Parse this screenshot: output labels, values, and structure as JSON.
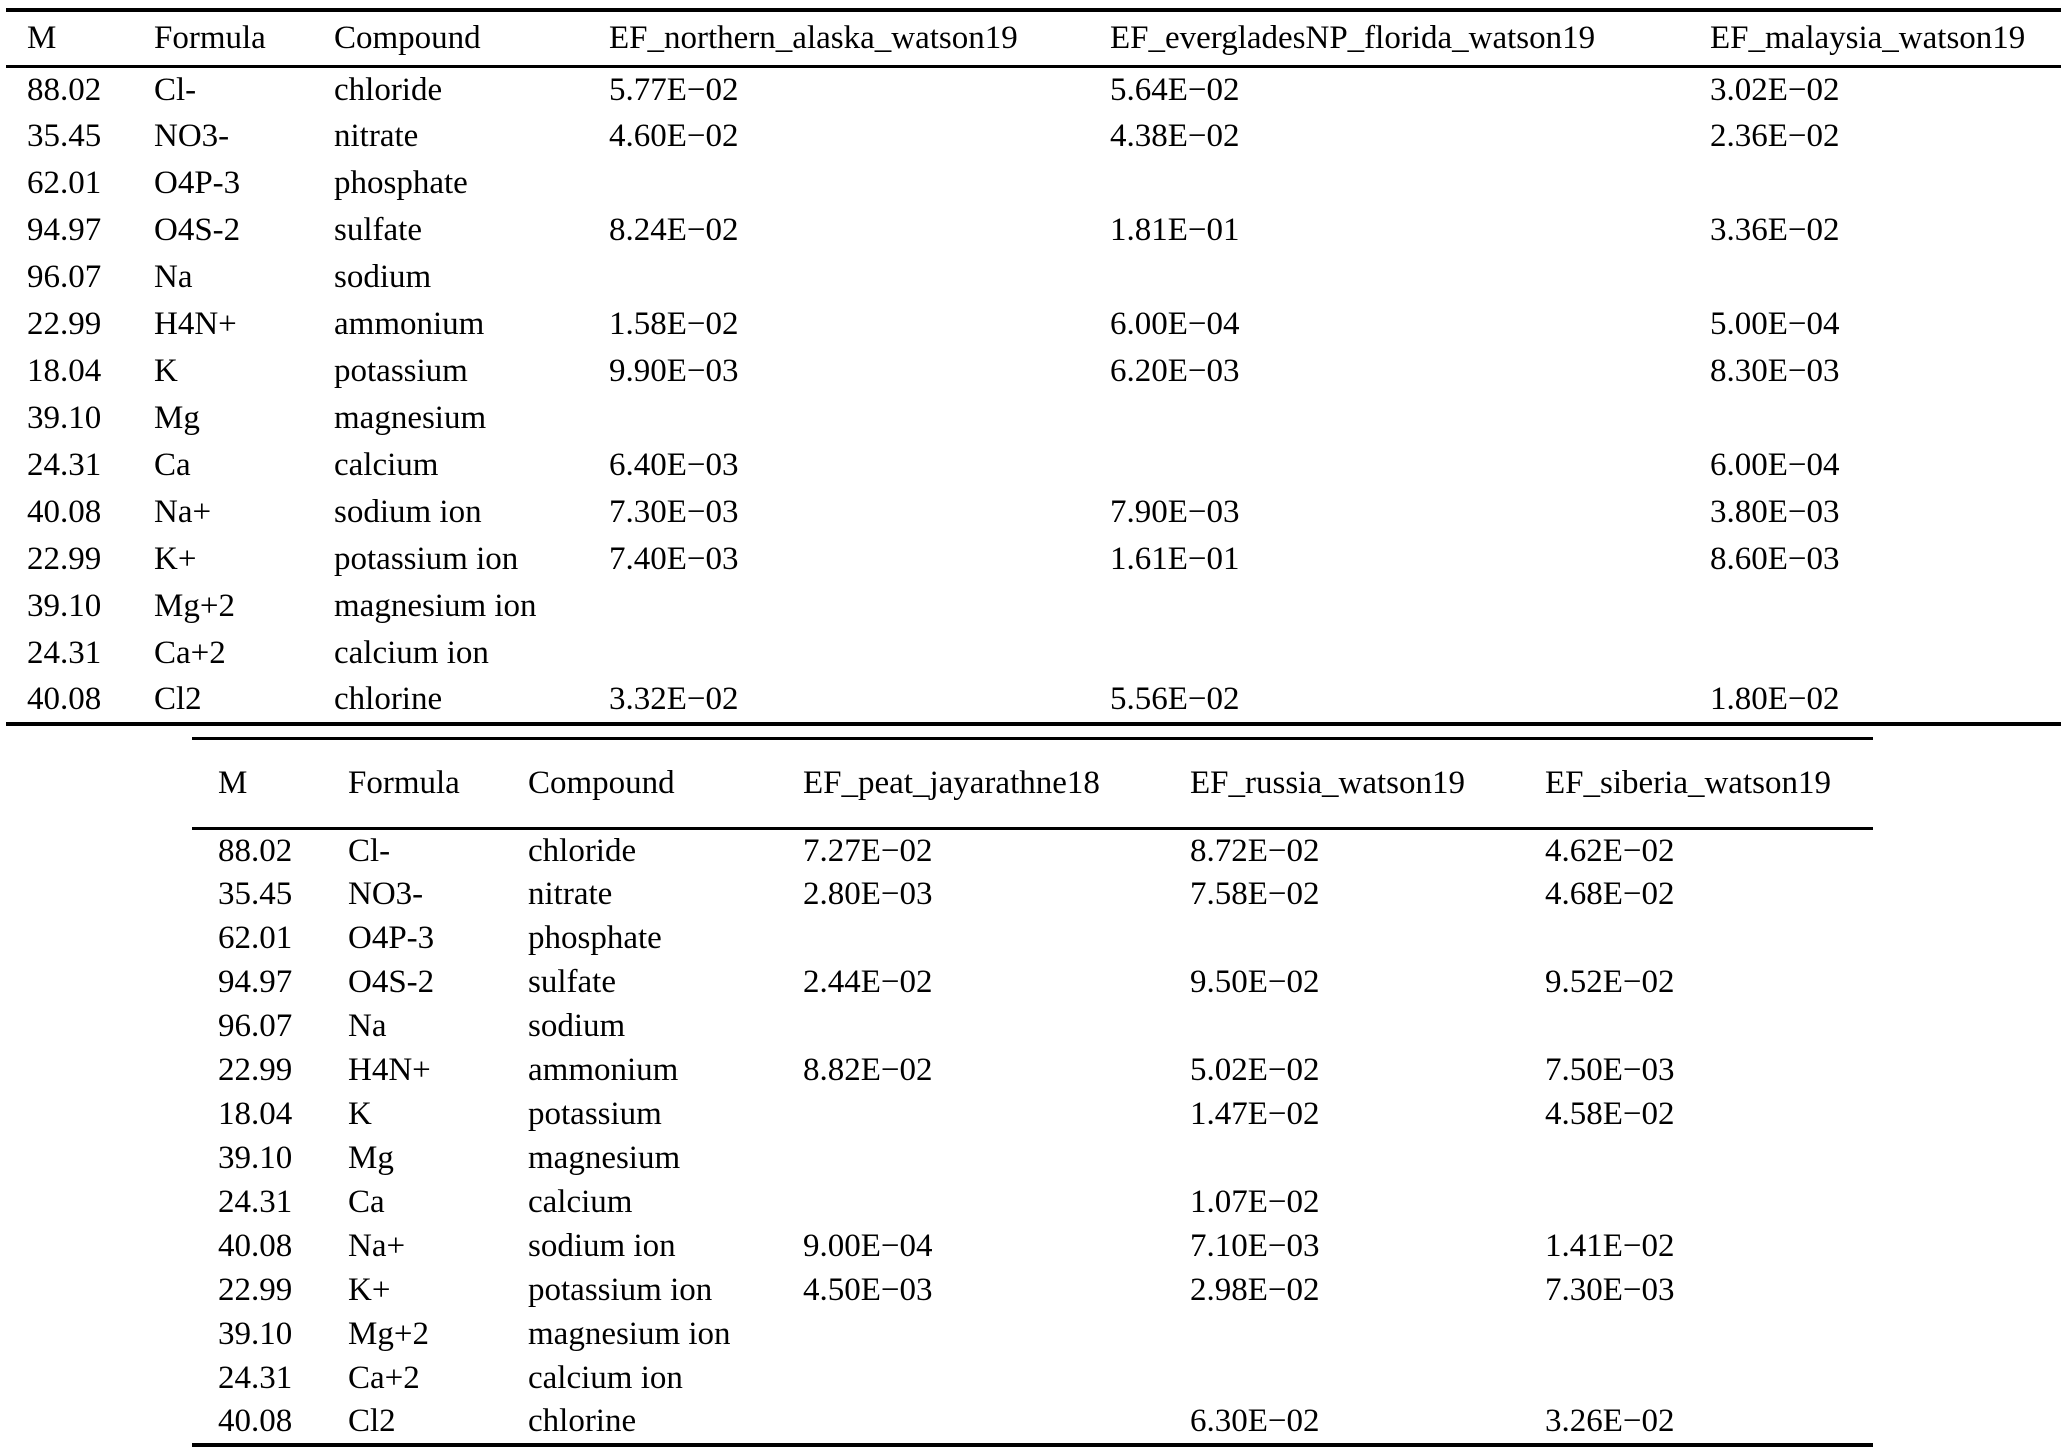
{
  "page": {
    "background_color": "#ffffff",
    "text_color": "#000000",
    "rule_color": "#000000"
  },
  "tables": [
    {
      "name": "emission-factors-table-top",
      "columns": [
        "M",
        "Formula",
        "Compound",
        "EF_northern_alaska_watson19",
        "EF_evergladesNP_florida_watson19",
        "EF_malaysia_watson19"
      ],
      "rows": [
        [
          "88.02",
          "Cl-",
          "chloride",
          "5.77E−02",
          "5.64E−02",
          "3.02E−02"
        ],
        [
          "35.45",
          "NO3-",
          "nitrate",
          "4.60E−02",
          "4.38E−02",
          "2.36E−02"
        ],
        [
          "62.01",
          "O4P-3",
          "phosphate",
          "",
          "",
          ""
        ],
        [
          "94.97",
          "O4S-2",
          "sulfate",
          "8.24E−02",
          "1.81E−01",
          "3.36E−02"
        ],
        [
          "96.07",
          "Na",
          "sodium",
          "",
          "",
          ""
        ],
        [
          "22.99",
          "H4N+",
          "ammonium",
          "1.58E−02",
          "6.00E−04",
          "5.00E−04"
        ],
        [
          "18.04",
          "K",
          "potassium",
          "9.90E−03",
          "6.20E−03",
          "8.30E−03"
        ],
        [
          "39.10",
          "Mg",
          "magnesium",
          "",
          "",
          ""
        ],
        [
          "24.31",
          "Ca",
          "calcium",
          "6.40E−03",
          "",
          "6.00E−04"
        ],
        [
          "40.08",
          "Na+",
          "sodium ion",
          "7.30E−03",
          "7.90E−03",
          "3.80E−03"
        ],
        [
          "22.99",
          "K+",
          "potassium ion",
          "7.40E−03",
          "1.61E−01",
          "8.60E−03"
        ],
        [
          "39.10",
          "Mg+2",
          "magnesium ion",
          "",
          "",
          ""
        ],
        [
          "24.31",
          "Ca+2",
          "calcium ion",
          "",
          "",
          ""
        ],
        [
          "40.08",
          "Cl2",
          "chlorine",
          "3.32E−02",
          "5.56E−02",
          "1.80E−02"
        ]
      ]
    },
    {
      "name": "emission-factors-table-bottom",
      "columns": [
        "M",
        "Formula",
        "Compound",
        "EF_peat_jayarathne18",
        "EF_russia_watson19",
        "EF_siberia_watson19"
      ],
      "rows": [
        [
          "88.02",
          "Cl-",
          "chloride",
          "7.27E−02",
          "8.72E−02",
          "4.62E−02"
        ],
        [
          "35.45",
          "NO3-",
          "nitrate",
          "2.80E−03",
          "7.58E−02",
          "4.68E−02"
        ],
        [
          "62.01",
          "O4P-3",
          "phosphate",
          "",
          "",
          ""
        ],
        [
          "94.97",
          "O4S-2",
          "sulfate",
          "2.44E−02",
          "9.50E−02",
          "9.52E−02"
        ],
        [
          "96.07",
          "Na",
          "sodium",
          "",
          "",
          ""
        ],
        [
          "22.99",
          "H4N+",
          "ammonium",
          "8.82E−02",
          "5.02E−02",
          "7.50E−03"
        ],
        [
          "18.04",
          "K",
          "potassium",
          "",
          "1.47E−02",
          "4.58E−02"
        ],
        [
          "39.10",
          "Mg",
          "magnesium",
          "",
          "",
          ""
        ],
        [
          "24.31",
          "Ca",
          "calcium",
          "",
          "1.07E−02",
          ""
        ],
        [
          "40.08",
          "Na+",
          "sodium ion",
          "9.00E−04",
          "7.10E−03",
          "1.41E−02"
        ],
        [
          "22.99",
          "K+",
          "potassium ion",
          "4.50E−03",
          "2.98E−02",
          "7.30E−03"
        ],
        [
          "39.10",
          "Mg+2",
          "magnesium ion",
          "",
          "",
          ""
        ],
        [
          "24.31",
          "Ca+2",
          "calcium ion",
          "",
          "",
          ""
        ],
        [
          "40.08",
          "Cl2",
          "chlorine",
          "",
          "6.30E−02",
          "3.26E−02"
        ]
      ]
    }
  ]
}
